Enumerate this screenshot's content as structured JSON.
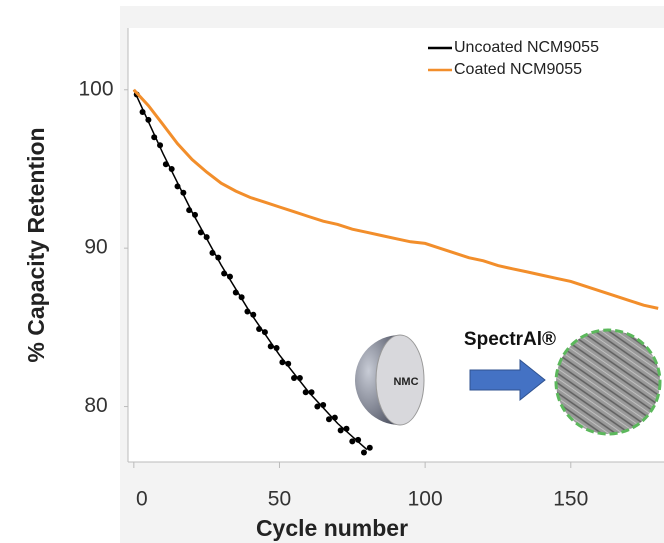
{
  "chart_data": {
    "type": "line",
    "xlabel": "Cycle number",
    "ylabel": "% Capacity Retention",
    "xlim": [
      -2,
      182
    ],
    "ylim": [
      76.5,
      103.9
    ],
    "xticks": [
      0,
      50,
      100,
      150
    ],
    "yticks": [
      80,
      90,
      100
    ],
    "legend": "upper right",
    "annotations": [
      "SpectrAl®",
      "NMC"
    ],
    "series": [
      {
        "name": "Uncoated NCM9055",
        "color": "#000000",
        "style": "markers",
        "x": [
          1,
          3,
          5,
          7,
          9,
          11,
          13,
          15,
          17,
          19,
          21,
          23,
          25,
          27,
          29,
          31,
          33,
          35,
          37,
          39,
          41,
          43,
          45,
          47,
          49,
          51,
          53,
          55,
          57,
          59,
          61,
          63,
          65,
          67,
          69,
          71,
          73,
          75,
          77,
          79,
          81
        ],
        "values": [
          99.7,
          98.6,
          98.1,
          97.0,
          96.5,
          95.3,
          95.0,
          93.9,
          93.5,
          92.4,
          92.1,
          91.0,
          90.7,
          89.7,
          89.4,
          88.4,
          88.2,
          87.2,
          86.9,
          86.0,
          85.8,
          84.9,
          84.7,
          83.8,
          83.7,
          82.8,
          82.7,
          81.8,
          81.8,
          80.9,
          80.9,
          80.0,
          80.1,
          79.2,
          79.3,
          78.5,
          78.6,
          77.8,
          77.9,
          77.1,
          77.4
        ],
        "fit": {
          "x": [
            0,
            10,
            20,
            30,
            40,
            50,
            60,
            70,
            80
          ],
          "values": [
            100,
            95.97,
            92.28,
            88.93,
            85.92,
            83.25,
            80.92,
            78.93,
            77.28
          ]
        }
      },
      {
        "name": "Coated NCM9055",
        "color": "#f28e2b",
        "style": "line",
        "x": [
          0,
          5,
          10,
          15,
          20,
          25,
          30,
          35,
          40,
          45,
          50,
          55,
          60,
          65,
          70,
          75,
          80,
          85,
          90,
          95,
          100,
          105,
          110,
          115,
          120,
          125,
          130,
          135,
          140,
          145,
          150,
          155,
          160,
          165,
          170,
          175,
          180
        ],
        "values": [
          100,
          99.0,
          97.8,
          96.6,
          95.6,
          94.8,
          94.1,
          93.6,
          93.2,
          92.9,
          92.6,
          92.3,
          92.0,
          91.7,
          91.5,
          91.2,
          91.0,
          90.8,
          90.6,
          90.4,
          90.3,
          90.0,
          89.7,
          89.4,
          89.2,
          88.9,
          88.7,
          88.5,
          88.3,
          88.1,
          87.9,
          87.6,
          87.3,
          87.0,
          86.7,
          86.4,
          86.2
        ]
      }
    ]
  }
}
